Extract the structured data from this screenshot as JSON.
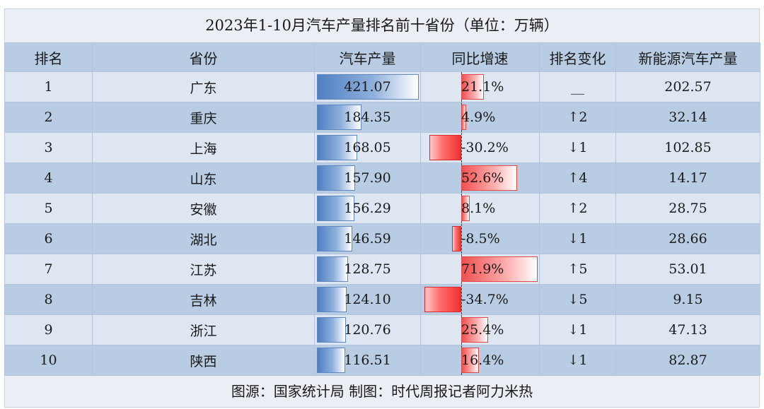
{
  "title": "2023年1-10月汽车产量排名前十省份（单位：万辆）",
  "headers": [
    "排名",
    "省份",
    "汽车产量",
    "同比增速",
    "排名变化",
    "新能源汽车产量"
  ],
  "footer": "图源：国家统计局 制图：时代周报记者阿力米热",
  "colors": {
    "production_bar": "#4f7fc2",
    "growth_positive": "#f05050",
    "growth_negative": "#d82828",
    "header_bg": "#b8cce4",
    "row_light": "#dde6f1"
  },
  "chart_data": {
    "type": "table",
    "title": "2023年1-10月汽车产量排名前十省份（单位：万辆）",
    "columns": [
      "排名",
      "省份",
      "汽车产量",
      "同比增速",
      "排名变化",
      "新能源汽车产量"
    ],
    "rows": [
      {
        "rank": "1",
        "province": "广东",
        "production": 421.07,
        "production_text": "421.07",
        "growth": 21.1,
        "growth_text": "21.1%",
        "rank_change": "__",
        "nev": "202.57"
      },
      {
        "rank": "2",
        "province": "重庆",
        "production": 184.35,
        "production_text": "184.35",
        "growth": 4.9,
        "growth_text": "4.9%",
        "rank_change": "↑2",
        "nev": "32.14"
      },
      {
        "rank": "3",
        "province": "上海",
        "production": 168.05,
        "production_text": "168.05",
        "growth": -30.2,
        "growth_text": "-30.2%",
        "rank_change": "↓1",
        "nev": "102.85"
      },
      {
        "rank": "4",
        "province": "山东",
        "production": 157.9,
        "production_text": "157.90",
        "growth": 52.6,
        "growth_text": "52.6%",
        "rank_change": "↑4",
        "nev": "14.17"
      },
      {
        "rank": "5",
        "province": "安徽",
        "production": 156.29,
        "production_text": "156.29",
        "growth": 8.1,
        "growth_text": "8.1%",
        "rank_change": "↑2",
        "nev": "28.75"
      },
      {
        "rank": "6",
        "province": "湖北",
        "production": 146.59,
        "production_text": "146.59",
        "growth": -8.5,
        "growth_text": "-8.5%",
        "rank_change": "↓1",
        "nev": "28.66"
      },
      {
        "rank": "7",
        "province": "江苏",
        "production": 128.75,
        "production_text": "128.75",
        "growth": 71.9,
        "growth_text": "71.9%",
        "rank_change": "↑5",
        "nev": "53.01"
      },
      {
        "rank": "8",
        "province": "吉林",
        "production": 124.1,
        "production_text": "124.10",
        "growth": -34.7,
        "growth_text": "-34.7%",
        "rank_change": "↓5",
        "nev": "9.15"
      },
      {
        "rank": "9",
        "province": "浙江",
        "production": 120.76,
        "production_text": "120.76",
        "growth": 25.4,
        "growth_text": "25.4%",
        "rank_change": "↓1",
        "nev": "47.13"
      },
      {
        "rank": "10",
        "province": "陕西",
        "production": 116.51,
        "production_text": "116.51",
        "growth": 16.4,
        "growth_text": "16.4%",
        "rank_change": "↓1",
        "nev": "82.87"
      }
    ]
  }
}
